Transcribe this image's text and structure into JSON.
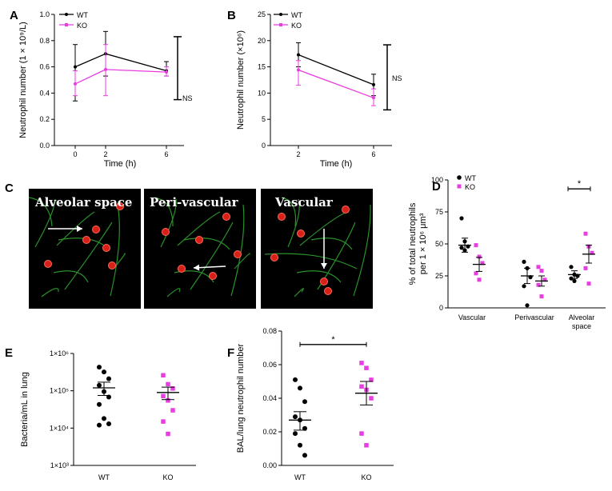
{
  "colors": {
    "wt": "#000000",
    "ko": "#e83de0",
    "membrane": "#2fa02f",
    "cell": "#d8201a",
    "bg": "#000000"
  },
  "panel_letters": [
    "A",
    "B",
    "C",
    "D",
    "E",
    "F"
  ],
  "micrographs": [
    "Alveolar space",
    "Peri-vascular",
    "Vascular"
  ],
  "chart_data": [
    {
      "panel": "A",
      "type": "line",
      "xlabel": "Time (h)",
      "ylabel": "Neutrophil number (1 × 10⁹/L)",
      "x": [
        0,
        2,
        6
      ],
      "x_ticks": [
        "0",
        "2",
        "6"
      ],
      "ylim": [
        0,
        1.0
      ],
      "y_ticks": [
        "0.0",
        "0.2",
        "0.4",
        "0.6",
        "0.8",
        "1.0"
      ],
      "legend": [
        "WT",
        "KO"
      ],
      "series": [
        {
          "name": "WT",
          "values": [
            0.6,
            0.7,
            0.57
          ],
          "err_low": [
            0.34,
            0.53,
            0.53
          ],
          "err_high": [
            0.77,
            0.87,
            0.64
          ]
        },
        {
          "name": "KO",
          "values": [
            0.47,
            0.58,
            0.56
          ],
          "err_low": [
            0.38,
            0.38,
            0.53
          ],
          "err_high": [
            0.57,
            0.77,
            0.6
          ]
        }
      ],
      "annotation": {
        "text": "NS",
        "low": 0.35,
        "high": 0.83
      }
    },
    {
      "panel": "B",
      "type": "line",
      "xlabel": "Time (h)",
      "ylabel": "Neutrophil number (×10⁶)",
      "x": [
        2,
        6
      ],
      "x_ticks": [
        "2",
        "6"
      ],
      "ylim": [
        0,
        25
      ],
      "y_ticks": [
        "0",
        "5",
        "10",
        "15",
        "20",
        "25"
      ],
      "legend": [
        "WT",
        "KO"
      ],
      "series": [
        {
          "name": "WT",
          "values": [
            17.3,
            11.6
          ],
          "err_low": [
            15.0,
            9.5
          ],
          "err_high": [
            19.6,
            13.6
          ]
        },
        {
          "name": "KO",
          "values": [
            14.4,
            9.1
          ],
          "err_low": [
            11.5,
            7.6
          ],
          "err_high": [
            16.2,
            10.8
          ]
        }
      ],
      "annotation": {
        "text": "NS",
        "low": 6.8,
        "high": 19.2
      }
    },
    {
      "panel": "D",
      "type": "scatter",
      "ylabel_line1": "% of total neutrophils",
      "ylabel_line2": "per 1 × 10⁶ μm³",
      "categories": [
        "Vascular",
        "Perivascular",
        "Alveolar space"
      ],
      "category_lines": [
        [
          "Vascular"
        ],
        [
          "Perivascular"
        ],
        [
          "Alveolar",
          "space"
        ]
      ],
      "ylim": [
        0,
        100
      ],
      "y_ticks": [
        "0",
        "25",
        "50",
        "75",
        "100"
      ],
      "legend": [
        "WT",
        "KO"
      ],
      "series": [
        {
          "name": "WT",
          "points": [
            [
              70,
              52,
              48,
              47,
              45
            ],
            [
              36,
              31,
              24,
              17,
              2
            ],
            [
              32,
              26,
              25,
              23,
              21
            ]
          ],
          "mean": [
            49,
            25,
            26
          ],
          "sem": [
            5.5,
            6,
            3
          ]
        },
        {
          "name": "KO",
          "points": [
            [
              49,
              40,
              35,
              27,
              22
            ],
            [
              32,
              29,
              22,
              18,
              9
            ],
            [
              58,
              48,
              43,
              31,
              19
            ]
          ],
          "mean": [
            34,
            21,
            42
          ],
          "sem": [
            5.5,
            4,
            7
          ]
        }
      ],
      "annotation": {
        "text": "*",
        "between": "Alveolar space",
        "y": 93
      }
    },
    {
      "panel": "E",
      "type": "scatter",
      "ylabel": "Bacteria/mL in lung",
      "categories": [
        "WT",
        "KO"
      ],
      "y_ticks": [
        "1×10³",
        "1×10⁴",
        "1×10⁵",
        "1×10⁶"
      ],
      "ylim": [
        1000,
        1000000
      ],
      "log_scale": true,
      "series": [
        {
          "name": "WT",
          "points": [
            430000,
            320000,
            210000,
            140000,
            95000,
            68000,
            43000,
            18000,
            13000,
            12000
          ],
          "mean": 120000,
          "sem_low": 75000,
          "sem_high": 170000
        },
        {
          "name": "KO",
          "points": [
            260000,
            150000,
            115000,
            72000,
            55000,
            30000,
            15000,
            7000
          ],
          "mean": 90000,
          "sem_low": 58000,
          "sem_high": 125000
        }
      ]
    },
    {
      "panel": "F",
      "type": "scatter",
      "ylabel": "BAL/lung neutrophil number",
      "categories": [
        "WT",
        "KO"
      ],
      "ylim": [
        0,
        0.08
      ],
      "y_ticks": [
        "0.00",
        "0.02",
        "0.04",
        "0.06",
        "0.08"
      ],
      "series": [
        {
          "name": "WT",
          "points": [
            0.051,
            0.046,
            0.038,
            0.029,
            0.027,
            0.022,
            0.019,
            0.012,
            0.006
          ],
          "mean": 0.027,
          "sem_low": 0.021,
          "sem_high": 0.032
        },
        {
          "name": "KO",
          "points": [
            0.061,
            0.058,
            0.051,
            0.047,
            0.045,
            0.04,
            0.019,
            0.012
          ],
          "mean": 0.043,
          "sem_low": 0.036,
          "sem_high": 0.05
        }
      ],
      "annotation": {
        "text": "*",
        "y": 0.072
      }
    }
  ]
}
